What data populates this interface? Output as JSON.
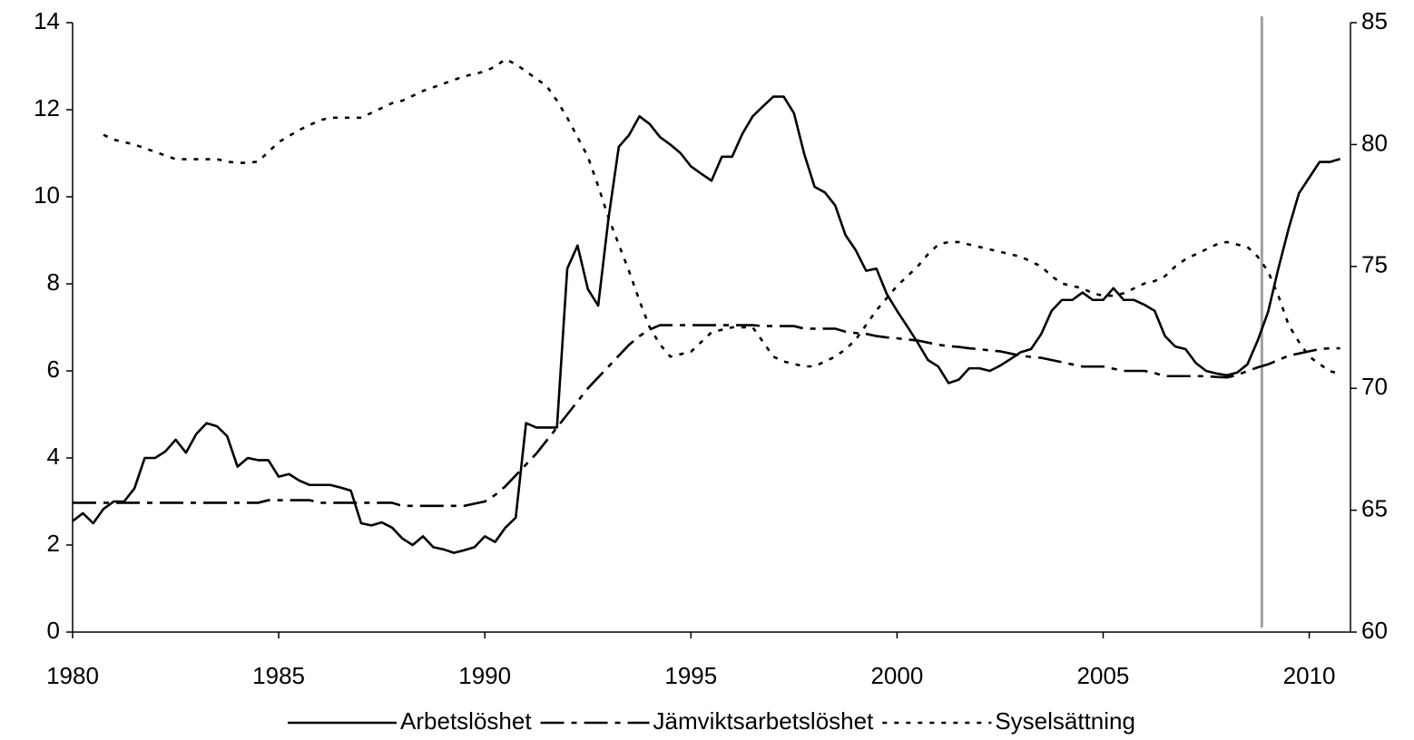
{
  "chart_data": {
    "type": "line",
    "x": [
      1980,
      1980.25,
      1980.5,
      1980.75,
      1981,
      1981.25,
      1981.5,
      1981.75,
      1982,
      1982.25,
      1982.5,
      1982.75,
      1983,
      1983.25,
      1983.5,
      1983.75,
      1984,
      1984.25,
      1984.5,
      1984.75,
      1985,
      1985.25,
      1985.5,
      1985.75,
      1986,
      1986.25,
      1986.5,
      1986.75,
      1987,
      1987.25,
      1987.5,
      1987.75,
      1988,
      1988.25,
      1988.5,
      1988.75,
      1989,
      1989.25,
      1989.5,
      1989.75,
      1990,
      1990.25,
      1990.5,
      1990.75,
      1991,
      1991.25,
      1991.5,
      1991.75,
      1992,
      1992.25,
      1992.5,
      1992.75,
      1993,
      1993.25,
      1993.5,
      1993.75,
      1994,
      1994.25,
      1994.5,
      1994.75,
      1995,
      1995.25,
      1995.5,
      1995.75,
      1996,
      1996.25,
      1996.5,
      1996.75,
      1997,
      1997.25,
      1997.5,
      1997.75,
      1998,
      1998.25,
      1998.5,
      1998.75,
      1999,
      1999.25,
      1999.5,
      1999.75,
      2000,
      2000.25,
      2000.5,
      2000.75,
      2001,
      2001.25,
      2001.5,
      2001.75,
      2002,
      2002.25,
      2002.5,
      2002.75,
      2003,
      2003.25,
      2003.5,
      2003.75,
      2004,
      2004.25,
      2004.5,
      2004.75,
      2005,
      2005.25,
      2005.5,
      2005.75,
      2006,
      2006.25,
      2006.5,
      2006.75,
      2007,
      2007.25,
      2007.5,
      2007.75,
      2008,
      2008.25,
      2008.5,
      2008.75,
      2009,
      2009.25,
      2009.5,
      2009.75,
      2010,
      2010.25,
      2010.5,
      2010.75
    ],
    "series": [
      {
        "name": "Arbetslöshet",
        "color": "#000000",
        "dash": "solid",
        "axis": "y",
        "values": [
          2.55,
          2.73,
          2.5,
          2.83,
          3.0,
          3.0,
          3.3,
          4.0,
          4.0,
          4.15,
          4.42,
          4.12,
          4.55,
          4.8,
          4.73,
          4.5,
          3.8,
          4.0,
          3.95,
          3.95,
          3.57,
          3.63,
          3.48,
          3.38,
          3.38,
          3.38,
          3.32,
          3.25,
          2.5,
          2.45,
          2.52,
          2.4,
          2.15,
          2.0,
          2.2,
          1.95,
          1.9,
          1.82,
          1.88,
          1.95,
          2.2,
          2.07,
          2.4,
          2.63,
          4.8,
          4.7,
          4.7,
          4.7,
          8.35,
          8.88,
          7.88,
          7.5,
          9.5,
          11.15,
          11.42,
          11.85,
          11.67,
          11.37,
          11.2,
          11.0,
          10.7,
          10.53,
          10.37,
          10.92,
          10.92,
          11.45,
          11.85,
          12.08,
          12.3,
          12.3,
          11.92,
          10.98,
          10.23,
          10.1,
          9.8,
          9.12,
          8.77,
          8.3,
          8.35,
          7.77,
          7.38,
          7.02,
          6.65,
          6.25,
          6.1,
          5.72,
          5.8,
          6.06,
          6.06,
          6.0,
          6.12,
          6.27,
          6.43,
          6.5,
          6.85,
          7.38,
          7.63,
          7.63,
          7.8,
          7.63,
          7.63,
          7.9,
          7.63,
          7.63,
          7.52,
          7.38,
          6.8,
          6.56,
          6.5,
          6.18,
          6.0,
          5.94,
          5.9,
          5.96,
          6.15,
          6.7,
          7.35,
          8.35,
          9.27,
          10.08,
          10.44,
          10.8,
          10.8,
          10.87
        ]
      },
      {
        "name": "Jämviktsarbetslöshet",
        "color": "#000000",
        "dash": "dashdot",
        "axis": "y",
        "values": [
          2.97,
          2.97,
          2.97,
          2.97,
          2.97,
          2.97,
          2.97,
          2.97,
          2.97,
          2.97,
          2.97,
          2.97,
          2.97,
          2.97,
          2.97,
          2.97,
          2.97,
          2.97,
          2.97,
          3.03,
          3.03,
          3.03,
          3.03,
          3.03,
          2.97,
          2.97,
          2.97,
          2.97,
          2.97,
          2.97,
          2.97,
          2.97,
          2.9,
          2.9,
          2.9,
          2.9,
          2.9,
          2.9,
          2.9,
          2.95,
          3.0,
          3.15,
          3.35,
          3.6,
          3.85,
          4.1,
          4.4,
          4.7,
          5.0,
          5.3,
          5.6,
          5.85,
          6.1,
          6.35,
          6.6,
          6.8,
          6.95,
          7.05,
          7.05,
          7.05,
          7.05,
          7.05,
          7.05,
          7.05,
          7.05,
          7.05,
          7.05,
          7.03,
          7.03,
          7.03,
          7.03,
          6.97,
          6.97,
          6.97,
          6.97,
          6.9,
          6.87,
          6.85,
          6.8,
          6.77,
          6.75,
          6.72,
          6.7,
          6.65,
          6.6,
          6.57,
          6.55,
          6.52,
          6.5,
          6.47,
          6.45,
          6.4,
          6.35,
          6.32,
          6.3,
          6.25,
          6.2,
          6.15,
          6.1,
          6.1,
          6.1,
          6.05,
          6.0,
          6.0,
          6.0,
          5.95,
          5.88,
          5.88,
          5.88,
          5.88,
          5.88,
          5.86,
          5.85,
          5.9,
          6.0,
          6.08,
          6.15,
          6.25,
          6.35,
          6.4,
          6.45,
          6.5,
          6.52,
          6.52
        ]
      },
      {
        "name": "Syselsättning",
        "color": "#000000",
        "dash": "dotted",
        "axis": "y2",
        "values": [
          null,
          null,
          null,
          80.4,
          80.2,
          80.1,
          80.0,
          79.85,
          79.7,
          79.55,
          79.4,
          79.4,
          79.4,
          79.4,
          79.4,
          79.3,
          79.25,
          79.25,
          79.3,
          79.7,
          80.1,
          80.35,
          80.6,
          80.8,
          81.0,
          81.1,
          81.1,
          81.1,
          81.1,
          81.3,
          81.5,
          81.7,
          81.8,
          82.0,
          82.2,
          82.35,
          82.5,
          82.65,
          82.8,
          82.9,
          83.0,
          83.2,
          83.5,
          83.3,
          83.0,
          82.7,
          82.4,
          81.8,
          81.1,
          80.3,
          79.5,
          78.3,
          77.0,
          75.9,
          74.8,
          73.6,
          72.5,
          71.8,
          71.3,
          71.4,
          71.5,
          71.9,
          72.3,
          72.4,
          72.5,
          72.5,
          72.5,
          71.9,
          71.3,
          71.1,
          71.0,
          70.9,
          70.9,
          71.1,
          71.3,
          71.6,
          72.0,
          72.6,
          73.2,
          73.7,
          74.2,
          74.6,
          75.0,
          75.5,
          75.9,
          76.0,
          76.0,
          75.9,
          75.8,
          75.7,
          75.6,
          75.5,
          75.4,
          75.2,
          75.0,
          74.6,
          74.3,
          74.2,
          74.1,
          73.9,
          73.8,
          73.8,
          73.9,
          74.1,
          74.3,
          74.4,
          74.6,
          75.0,
          75.3,
          75.5,
          75.7,
          75.9,
          76.0,
          75.9,
          75.8,
          75.4,
          74.8,
          73.8,
          72.6,
          71.9,
          71.3,
          71.0,
          70.7,
          70.6
        ]
      }
    ],
    "xlim": [
      1980,
      2011
    ],
    "xticks": [
      1980,
      1985,
      1990,
      1995,
      2000,
      2005,
      2010
    ],
    "ylim": [
      0,
      14
    ],
    "yticks": [
      0,
      2,
      4,
      6,
      8,
      10,
      12,
      14
    ],
    "y2lim": [
      60,
      85
    ],
    "y2ticks": [
      60,
      65,
      70,
      75,
      80,
      85
    ],
    "vlines": [
      {
        "x": 2008.85,
        "color": "#a0a0a0"
      }
    ],
    "grid": false,
    "legend": "bottom"
  }
}
